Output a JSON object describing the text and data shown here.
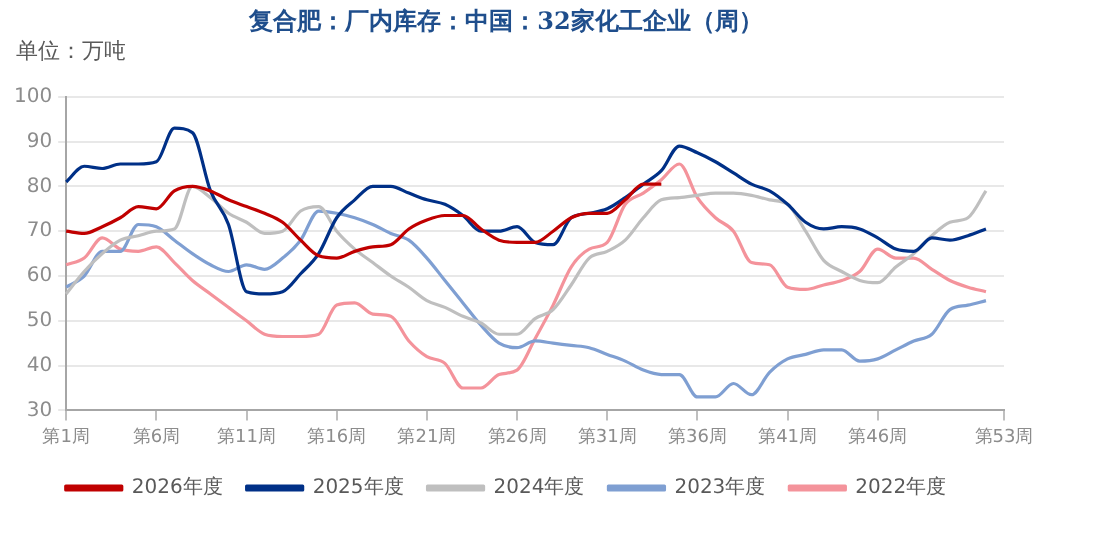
{
  "chart_data": {
    "type": "line",
    "title": "复合肥：厂内库存：中国：32家化工企业（周）",
    "annotations": [
      "单位：万吨"
    ],
    "categories": [
      "第1周",
      null,
      null,
      null,
      null,
      "第6周",
      null,
      null,
      null,
      null,
      "第11周",
      null,
      null,
      null,
      null,
      "第16周",
      null,
      null,
      null,
      null,
      "第21周",
      null,
      null,
      null,
      null,
      "第26周",
      null,
      null,
      null,
      null,
      "第31周",
      null,
      null,
      null,
      null,
      "第36周",
      null,
      null,
      null,
      null,
      "第41周",
      null,
      null,
      null,
      null,
      "第46周",
      null,
      null,
      null,
      null,
      null,
      null,
      "第53周"
    ],
    "ylim": [
      30,
      100
    ],
    "yticks": [
      30,
      40,
      50,
      60,
      70,
      80,
      90,
      100
    ],
    "grid": "y",
    "legend": "bottom",
    "marker": "none",
    "series": [
      {
        "name": "2026年度",
        "color": "#c00000",
        "values": [
          70,
          69.5,
          71,
          73,
          75.5,
          75,
          79,
          80,
          79,
          77,
          75.5,
          74,
          72,
          68,
          64.5,
          64,
          65.5,
          66.5,
          67,
          70.5,
          72.5,
          73.5,
          73.5,
          70.5,
          68,
          67.5,
          67.5,
          70,
          73,
          74,
          74,
          77,
          80.5,
          80.5,
          null,
          null,
          null,
          null,
          null,
          null,
          null,
          null,
          null,
          null,
          null,
          null,
          null,
          null,
          null,
          null,
          null,
          null,
          null
        ]
      },
      {
        "name": "2025年度",
        "color": "#003087",
        "values": [
          81,
          84.5,
          84,
          85,
          85,
          85.5,
          93,
          92,
          79,
          71.5,
          56.5,
          56,
          56.5,
          60.5,
          65,
          73,
          77,
          80,
          80,
          78.5,
          77,
          76,
          73.5,
          70,
          70,
          71,
          67.5,
          67,
          73,
          74,
          75,
          77.5,
          80.5,
          83.5,
          89,
          87.5,
          85.5,
          83,
          80.5,
          79,
          76,
          72,
          70.5,
          71,
          70.5,
          68.5,
          66,
          65.5,
          68.5,
          68,
          69,
          70.5,
          null
        ]
      },
      {
        "name": "2024年度",
        "color": "#bfbfbf",
        "values": [
          56,
          61,
          65,
          68,
          69,
          70,
          70.5,
          80,
          77.5,
          74,
          72,
          69.5,
          70,
          74.5,
          75.5,
          70,
          66,
          63,
          60,
          57.5,
          54.5,
          53,
          51,
          49.5,
          47,
          47,
          50.5,
          52.5,
          58,
          64,
          65.5,
          68,
          73,
          77,
          77.5,
          78,
          78.5,
          78.5,
          78,
          77,
          76,
          70,
          63.5,
          61,
          59,
          58.5,
          62,
          65,
          69,
          72,
          73,
          79,
          null
        ]
      },
      {
        "name": "2023年度",
        "color": "#7f9fd2",
        "values": [
          57.5,
          60,
          65.5,
          65.5,
          71.5,
          71,
          68,
          65,
          62.5,
          61,
          62.5,
          61.5,
          64,
          68,
          74.5,
          74,
          73,
          71.5,
          69.5,
          68,
          64,
          59,
          54,
          49,
          45,
          44,
          45.5,
          45,
          44.5,
          44,
          42.5,
          41,
          39,
          38,
          38,
          33,
          33,
          36,
          33.5,
          38.5,
          41.5,
          42.5,
          43.5,
          43.5,
          41,
          41.5,
          43.5,
          45.5,
          47,
          52.5,
          53.5,
          54.5,
          null
        ]
      },
      {
        "name": "2022年度",
        "color": "#f4939b",
        "values": [
          62.5,
          64,
          68.5,
          66,
          65.5,
          66.5,
          63,
          59,
          56,
          53,
          50,
          47,
          46.5,
          46.5,
          47,
          53.5,
          54,
          51.5,
          51,
          45.5,
          42,
          40.5,
          35,
          35,
          38,
          39,
          46,
          53.5,
          62,
          66,
          67.5,
          76,
          78.5,
          81.5,
          85,
          77.5,
          73,
          70,
          63,
          62.5,
          57.5,
          57,
          58,
          59,
          61,
          66,
          64,
          64,
          61.5,
          59,
          57.5,
          56.5,
          null
        ]
      }
    ]
  }
}
